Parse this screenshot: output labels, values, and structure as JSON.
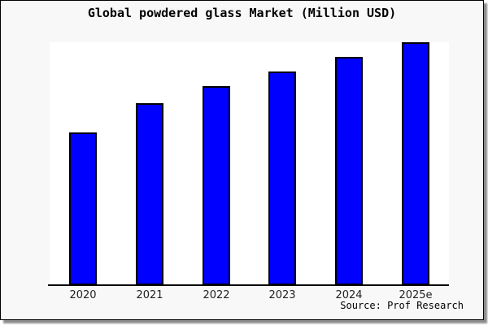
{
  "title": "Global powdered glass Market (Million USD)",
  "source_note": "Source: Prof Research",
  "colors": {
    "bar_fill": "#0000ff",
    "bar_border": "#000000",
    "frame_background": "#f8f8f8",
    "plot_background": "#ffffff",
    "axis": "#000000",
    "tick_label": "#222222",
    "title_text": "#000000"
  },
  "chart_data": {
    "type": "bar",
    "title": "Global powdered glass Market (Million USD)",
    "categories": [
      "2020",
      "2021",
      "2022",
      "2023",
      "2024",
      "2025e"
    ],
    "values": [
      63,
      75,
      82,
      88,
      94,
      100
    ],
    "values_note": "No y-axis ticks or data labels shown; values are relative bar heights as percent of the tallest bar (2025e = 100)",
    "xlabel": "",
    "ylabel": "",
    "ylim": [
      0,
      100
    ],
    "grid": false,
    "legend": false,
    "legend_position": "none"
  }
}
